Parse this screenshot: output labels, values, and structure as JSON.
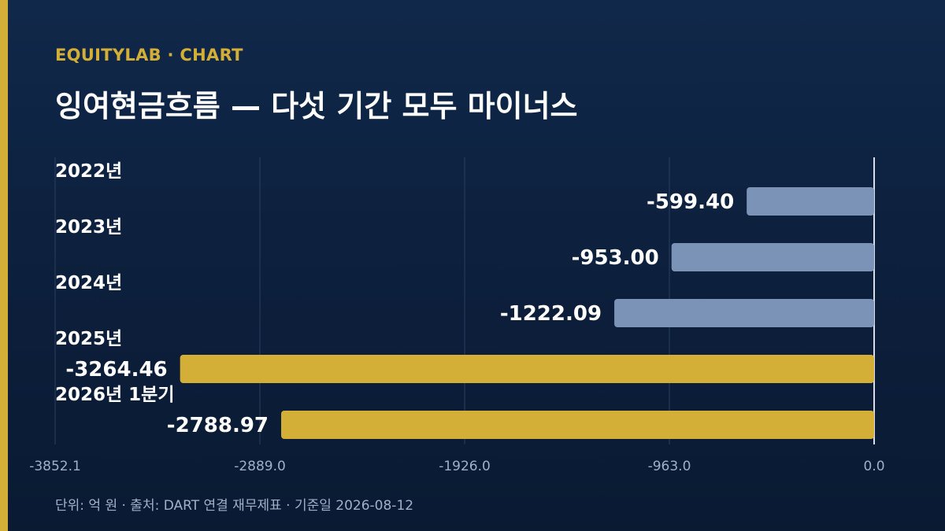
{
  "header": {
    "eyebrow": "EQUITYLAB · CHART",
    "title": "잉여현금흐름 — 다섯 기간 모두 마이너스"
  },
  "footer": {
    "note": "단위: 억 원 · 출처: DART 연결 재무제표 · 기준일 2026-08-12"
  },
  "colors": {
    "background": "#0c1e3a",
    "accent": "#d4af37",
    "past_bar": "#7b93b6",
    "recent_bar": "#d4af37",
    "grid": "#2a3f60",
    "tick_text": "#9fb0c8"
  },
  "chart_data": {
    "type": "bar",
    "orientation": "horizontal",
    "title": "잉여현금흐름 — 다섯 기간 모두 마이너스",
    "unit": "억 원",
    "categories": [
      "2022년",
      "2023년",
      "2024년",
      "2025년",
      "2026년 1분기"
    ],
    "values": [
      -599.4,
      -953.0,
      -1222.09,
      -3264.46,
      -2788.97
    ],
    "value_labels": [
      "-599.40",
      "-953.00",
      "-1222.09",
      "-3264.46",
      "-2788.97"
    ],
    "highlighted": [
      false,
      false,
      false,
      true,
      true
    ],
    "xlim": [
      -3852.1,
      0.0
    ],
    "xticks": [
      -3852.1,
      -2889.0,
      -1926.0,
      -963.0,
      0.0
    ],
    "xtick_labels": [
      "-3852.1",
      "-2889.0",
      "-1926.0",
      "-963.0",
      "0.0"
    ],
    "grid": true
  }
}
